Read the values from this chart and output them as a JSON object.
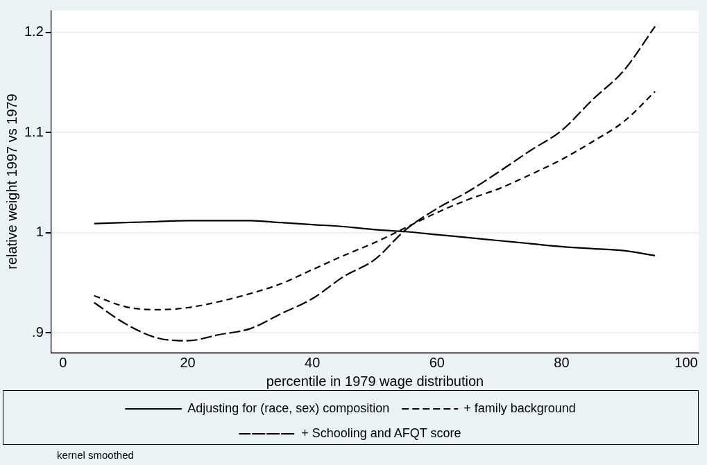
{
  "chart_data": {
    "type": "line",
    "xlabel": "percentile in 1979 wage distribution",
    "ylabel": "relative weight 1997 vs 1979",
    "x": [
      5,
      10,
      15,
      20,
      25,
      30,
      35,
      40,
      45,
      50,
      55,
      60,
      65,
      70,
      75,
      80,
      85,
      90,
      95
    ],
    "series": [
      {
        "name": "Adjusting for (race, sex) composition",
        "color": "#000000",
        "line_style": "solid",
        "values": [
          1.009,
          1.01,
          1.011,
          1.012,
          1.012,
          1.012,
          1.01,
          1.008,
          1.006,
          1.003,
          1.001,
          0.998,
          0.995,
          0.992,
          0.989,
          0.986,
          0.984,
          0.982,
          0.977
        ]
      },
      {
        "name": "+ family background",
        "color": "#000000",
        "line_style": "dashed",
        "values": [
          0.937,
          0.926,
          0.923,
          0.925,
          0.931,
          0.939,
          0.949,
          0.963,
          0.977,
          0.99,
          1.005,
          1.02,
          1.033,
          1.044,
          1.058,
          1.073,
          1.091,
          1.111,
          1.141
        ]
      },
      {
        "name": "+ Schooling and AFQT score",
        "color": "#000000",
        "line_style": "longdash",
        "values": [
          0.93,
          0.909,
          0.895,
          0.892,
          0.898,
          0.904,
          0.919,
          0.934,
          0.956,
          0.973,
          1.003,
          1.024,
          1.041,
          1.061,
          1.082,
          1.102,
          1.133,
          1.162,
          1.206
        ]
      }
    ],
    "xlim": [
      -1.9,
      102
    ],
    "xticks": [
      0,
      20,
      40,
      60,
      80,
      100
    ],
    "ylim": [
      0.88,
      1.222
    ],
    "yticks": [
      {
        "value": 0.9,
        "label": ".9"
      },
      1,
      1.1,
      1.2
    ],
    "grid": "y",
    "legend": "bottom",
    "marker": "none",
    "annotations": [
      "kernel smoothed"
    ]
  }
}
